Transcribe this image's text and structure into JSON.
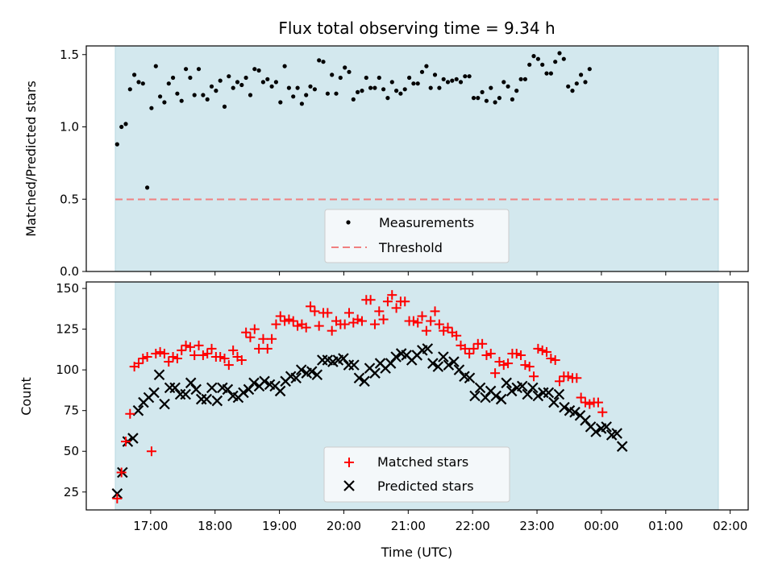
{
  "colors": {
    "shade": "#d3e8ee",
    "shade_edge": "#b8d9e2",
    "measurement": "#000000",
    "threshold": "#f08080",
    "matched": "#ff0000",
    "predicted": "#000000"
  },
  "chart_data": [
    {
      "type": "scatter",
      "panel": "top",
      "title": "Flux total observing time = 9.34 h",
      "xlabel": "",
      "ylabel": "Matched/Predicted stars",
      "ylim": [
        0,
        1.56
      ],
      "yticks": [
        0.0,
        0.5,
        1.0,
        1.5
      ],
      "ytick_labels": [
        "0.0",
        "0.5",
        "1.0",
        "1.5"
      ],
      "shaded_span_hours": [
        16.48,
        25.82
      ],
      "threshold": 0.5,
      "legend": {
        "position": "lower-center",
        "entries": [
          "Measurements",
          "Threshold"
        ]
      },
      "series": [
        {
          "name": "Measurements",
          "x_start": 16.48,
          "x_step": 0.0667,
          "values": [
            0.88,
            1.0,
            1.02,
            1.26,
            1.36,
            1.31,
            1.3,
            0.58,
            1.13,
            1.42,
            1.21,
            1.17,
            1.3,
            1.34,
            1.23,
            1.18,
            1.4,
            1.34,
            1.22,
            1.4,
            1.22,
            1.19,
            1.28,
            1.25,
            1.32,
            1.14,
            1.35,
            1.27,
            1.31,
            1.29,
            1.34,
            1.22,
            1.4,
            1.39,
            1.31,
            1.33,
            1.28,
            1.31,
            1.17,
            1.42,
            1.27,
            1.21,
            1.27,
            1.16,
            1.22,
            1.28,
            1.26,
            1.46,
            1.45,
            1.23,
            1.36,
            1.23,
            1.34,
            1.41,
            1.38,
            1.19,
            1.24,
            1.25,
            1.34,
            1.27,
            1.27,
            1.34,
            1.26,
            1.2,
            1.31,
            1.25,
            1.23,
            1.26,
            1.34,
            1.3,
            1.3,
            1.38,
            1.42,
            1.27,
            1.36,
            1.27,
            1.33,
            1.31,
            1.32,
            1.33,
            1.31,
            1.35,
            1.35,
            1.2,
            1.2,
            1.24,
            1.18,
            1.27,
            1.17,
            1.2,
            1.31,
            1.28,
            1.19,
            1.25,
            1.33,
            1.33,
            1.43,
            1.49,
            1.47,
            1.43,
            1.37,
            1.37,
            1.45,
            1.51,
            1.47,
            1.28,
            1.25,
            1.3,
            1.36,
            1.31,
            1.4
          ]
        }
      ]
    },
    {
      "type": "scatter",
      "panel": "bottom",
      "title": "",
      "xlabel": "Time (UTC)",
      "ylabel": "Count",
      "xlim_hours": [
        16.0,
        26.28
      ],
      "xticks_hours": [
        17,
        18,
        19,
        20,
        21,
        22,
        23,
        24,
        25,
        26
      ],
      "xtick_labels": [
        "17:00",
        "18:00",
        "19:00",
        "20:00",
        "21:00",
        "22:00",
        "23:00",
        "00:00",
        "01:00",
        "02:00"
      ],
      "ylim": [
        14,
        154
      ],
      "yticks": [
        25,
        50,
        75,
        100,
        125,
        150
      ],
      "ytick_labels": [
        "25",
        "50",
        "75",
        "100",
        "125",
        "150"
      ],
      "shaded_span_hours": [
        16.48,
        25.82
      ],
      "legend": {
        "position": "lower-center",
        "entries": [
          "Matched stars",
          "Predicted stars"
        ]
      },
      "series": [
        {
          "name": "Matched stars",
          "x_start": 16.48,
          "x_step": 0.0667,
          "values": [
            21,
            37,
            56,
            73,
            102,
            104,
            107,
            108,
            50,
            110,
            111,
            110,
            105,
            108,
            107,
            112,
            115,
            114,
            109,
            115,
            109,
            110,
            113,
            108,
            108,
            107,
            103,
            112,
            108,
            106,
            123,
            120,
            125,
            113,
            119,
            113,
            119,
            128,
            133,
            130,
            131,
            130,
            127,
            128,
            126,
            139,
            136,
            127,
            135,
            135,
            124,
            130,
            128,
            128,
            135,
            129,
            131,
            130,
            143,
            143,
            128,
            136,
            131,
            142,
            146,
            138,
            142,
            142,
            130,
            130,
            129,
            133,
            124,
            130,
            136,
            128,
            124,
            126,
            123,
            121,
            115,
            113,
            110,
            113,
            116,
            116,
            109,
            110,
            98,
            105,
            103,
            104,
            110,
            110,
            109,
            103,
            102,
            96,
            113,
            112,
            111,
            107,
            106,
            93,
            96,
            96,
            95,
            95,
            83,
            80,
            79,
            80,
            80,
            74
          ]
        },
        {
          "name": "Predicted stars",
          "x_start": 16.48,
          "x_step": 0.0817,
          "values": [
            24,
            37,
            56,
            58,
            75,
            80,
            83,
            86,
            97,
            79,
            89,
            89,
            85,
            85,
            92,
            88,
            82,
            82,
            89,
            81,
            89,
            88,
            84,
            83,
            86,
            88,
            92,
            90,
            93,
            91,
            90,
            87,
            93,
            96,
            95,
            100,
            98,
            99,
            97,
            106,
            106,
            105,
            106,
            107,
            103,
            103,
            95,
            93,
            101,
            98,
            104,
            101,
            104,
            108,
            110,
            109,
            106,
            109,
            112,
            113,
            104,
            102,
            108,
            103,
            105,
            100,
            96,
            95,
            84,
            89,
            83,
            87,
            84,
            82,
            92,
            87,
            89,
            90,
            85,
            89,
            84,
            86,
            86,
            80,
            85,
            77,
            75,
            74,
            72,
            69,
            65,
            62,
            64,
            65,
            60,
            61,
            53
          ]
        }
      ]
    }
  ]
}
